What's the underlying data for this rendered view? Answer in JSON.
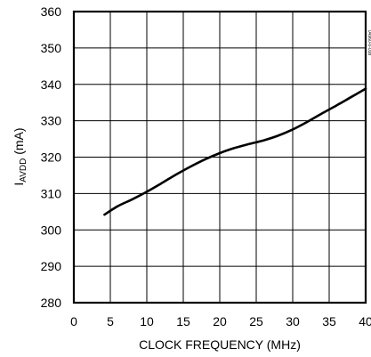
{
  "chart_data": {
    "type": "line",
    "title": "",
    "xlabel": "CLOCK FREQUENCY (MHz)",
    "ylabel_main": "I",
    "ylabel_sub": "AVDD",
    "ylabel_unit": " (mA)",
    "xlim": [
      0,
      40
    ],
    "ylim": [
      280,
      360
    ],
    "xticks": [
      0,
      5,
      10,
      15,
      20,
      25,
      30,
      35,
      40
    ],
    "yticks": [
      280,
      290,
      300,
      310,
      320,
      330,
      340,
      350,
      360
    ],
    "grid": true,
    "series": [
      {
        "x": [
          4.2,
          6,
          8,
          10,
          12,
          14,
          16,
          18,
          20,
          22,
          24,
          26,
          28,
          30,
          32,
          34,
          36,
          38,
          40
        ],
        "y": [
          304.2,
          306.5,
          308.4,
          310.5,
          312.8,
          315.2,
          317.4,
          319.4,
          321.1,
          322.5,
          323.6,
          324.6,
          325.9,
          327.6,
          329.7,
          332.0,
          334.2,
          336.5,
          338.8
        ]
      }
    ],
    "colors": {
      "line": "#000000",
      "grid": "#000000",
      "background": "#ffffff"
    },
    "side_note": "04960-0-038"
  }
}
